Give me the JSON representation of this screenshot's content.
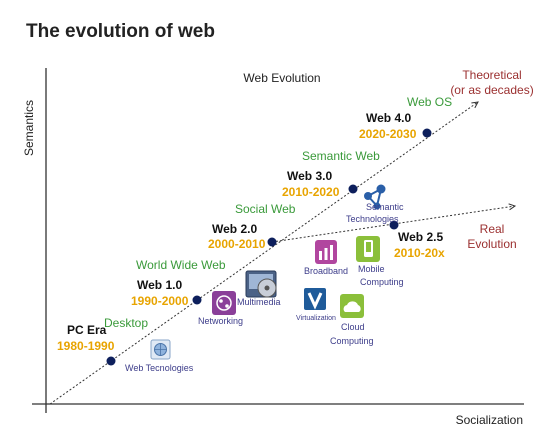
{
  "title": "The evolution of web",
  "axes": {
    "y_label": "Semantics",
    "x_label": "Socialization"
  },
  "diagram_title": "Web Evolution",
  "theoretical_label": [
    "Theoretical",
    "(or as decades)"
  ],
  "real_label": [
    "Real",
    "Evolution"
  ],
  "eras": [
    {
      "name": "PC Era",
      "years": "1980-1990",
      "theme": "Desktop"
    },
    {
      "name": "Web 1.0",
      "years": "1990-2000",
      "theme": "World Wide Web"
    },
    {
      "name": "Web 2.0",
      "years": "2000-2010",
      "theme": "Social Web"
    },
    {
      "name": "Web 3.0",
      "years": "2010-2020",
      "theme": "Semantic Web"
    },
    {
      "name": "Web 4.0",
      "years": "2020-2030",
      "theme": "Web OS"
    },
    {
      "name": "Web 2.5",
      "years": "2010-20x",
      "theme": ""
    }
  ],
  "technologies": {
    "web_tecnologies": "Web Tecnologies",
    "networking": "Networking",
    "multimedia": "Multimedia",
    "broadband": "Broadband",
    "mobile": [
      "Mobile",
      "Computing"
    ],
    "virtualization": "Virtualization",
    "cloud": [
      "Cloud",
      "Computing"
    ],
    "semantic": [
      "Semantic",
      "Technologies"
    ]
  },
  "colors": {
    "era_name": "#111111",
    "years": "#e8a400",
    "theme": "#3a9a3a",
    "annotation": "#9b3030",
    "tech_label": "#3d3d8a",
    "dot": "#0d1f5c"
  }
}
